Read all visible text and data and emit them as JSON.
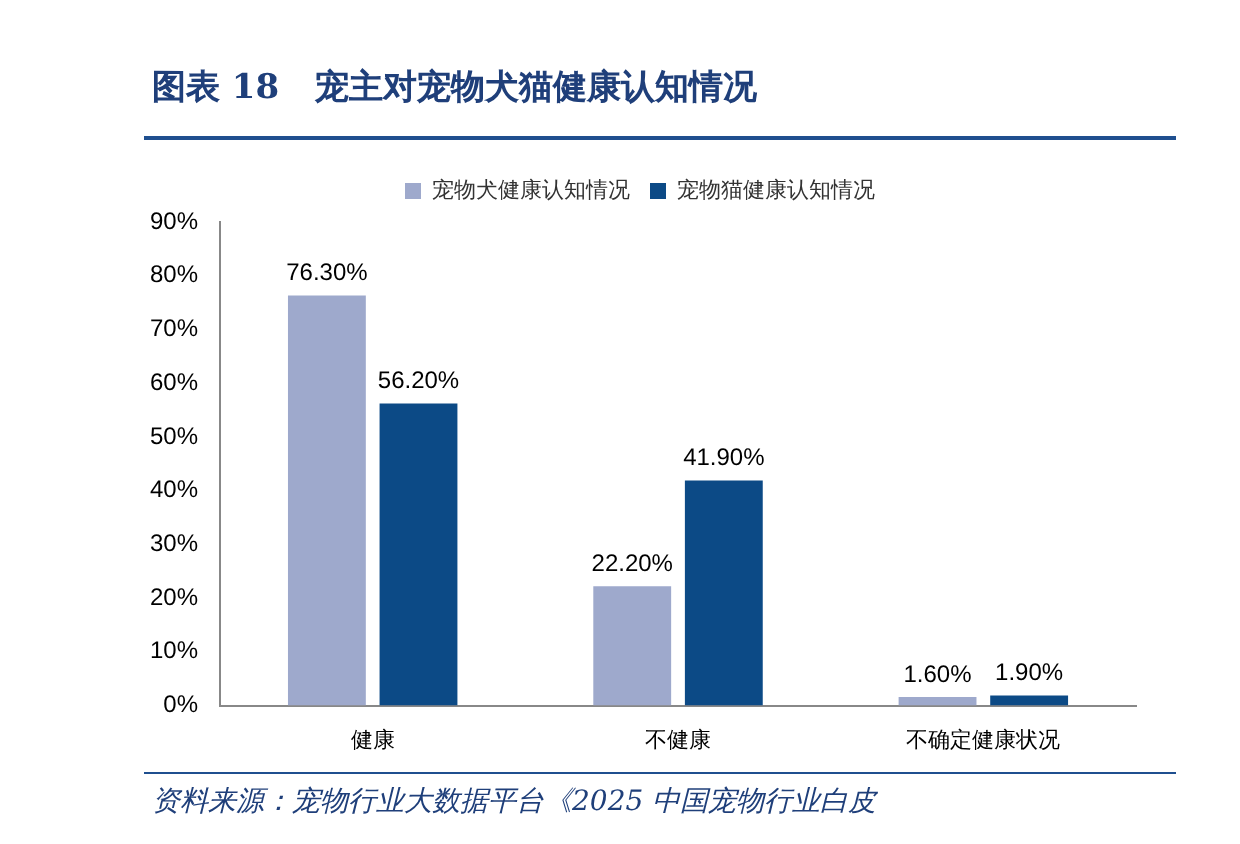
{
  "chart_data": {
    "type": "bar",
    "title": "图表 18   宠主对宠物犬猫健康认知情况",
    "categories": [
      "健康",
      "不健康",
      "不确定健康状况"
    ],
    "series": [
      {
        "name": "宠物犬健康认知情况",
        "color": "#9ea9cc",
        "values": [
          76.3,
          22.2,
          1.6
        ],
        "value_labels": [
          "76.30%",
          "22.20%",
          "1.60%"
        ]
      },
      {
        "name": "宠物猫健康认知情况",
        "color": "#0c4a86",
        "values": [
          56.2,
          41.9,
          1.9
        ],
        "value_labels": [
          "56.20%",
          "41.90%",
          "1.90%"
        ]
      }
    ],
    "ylim": [
      0,
      90
    ],
    "yticks": [
      {
        "value": 0,
        "label": "0%"
      },
      {
        "value": 10,
        "label": "10%"
      },
      {
        "value": 20,
        "label": "20%"
      },
      {
        "value": 30,
        "label": "30%"
      },
      {
        "value": 40,
        "label": "40%"
      },
      {
        "value": 50,
        "label": "50%"
      },
      {
        "value": 60,
        "label": "60%"
      },
      {
        "value": 70,
        "label": "70%"
      },
      {
        "value": 80,
        "label": "80%"
      },
      {
        "value": 90,
        "label": "90%"
      }
    ],
    "grid": false,
    "legend": "top",
    "annotations": [
      "资料来源：宠物行业大数据平台《2025 中国宠物行业白皮"
    ]
  }
}
